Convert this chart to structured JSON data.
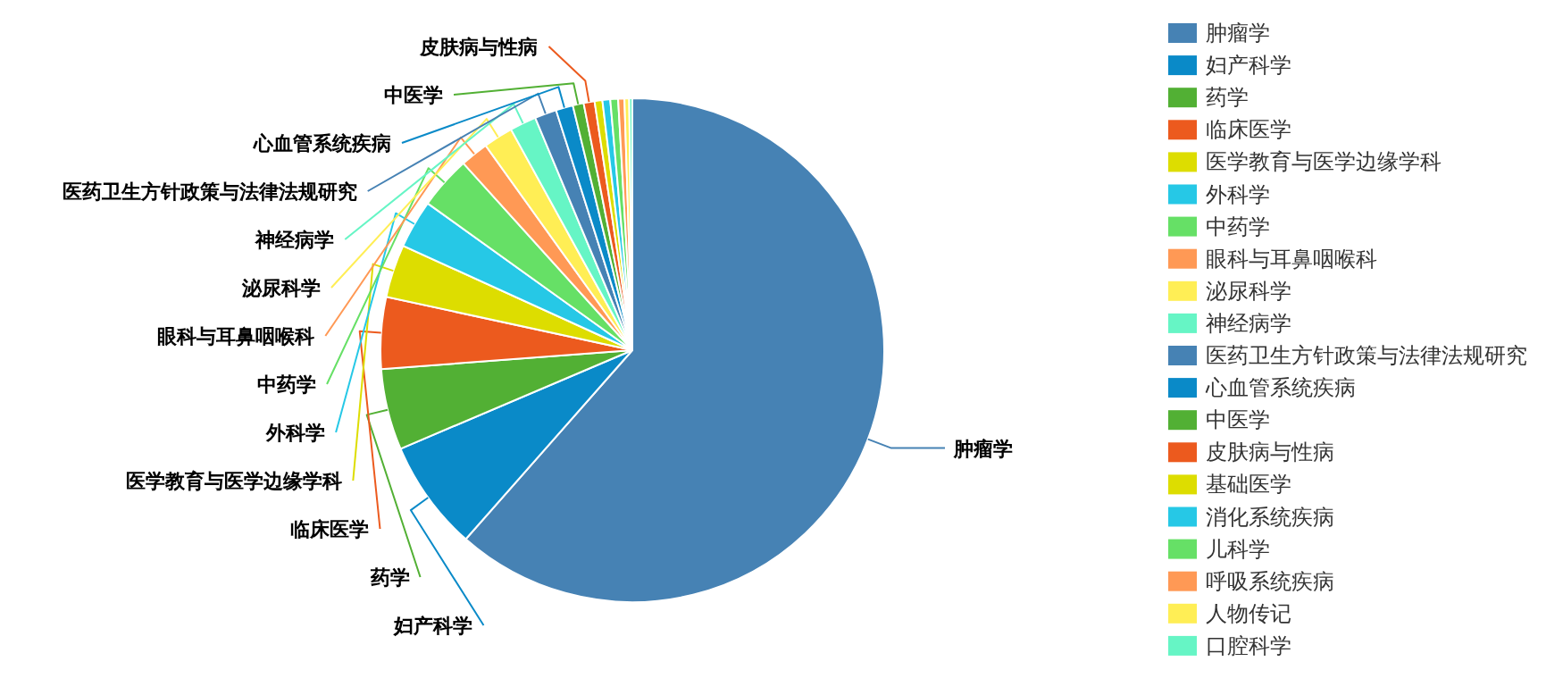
{
  "chart_data": {
    "type": "pie",
    "categories": [
      "肿瘤学",
      "妇产科学",
      "药学",
      "临床医学",
      "医学教育与医学边缘学科",
      "外科学",
      "中药学",
      "眼科与耳鼻咽喉科",
      "泌尿科学",
      "神经病学",
      "医药卫生方针政策与法律法规研究",
      "心血管系统疾病",
      "中医学",
      "皮肤病与性病",
      "基础医学",
      "消化系统疾病",
      "儿科学",
      "呼吸系统疾病",
      "人物传记",
      "口腔科学"
    ],
    "values": [
      61.5,
      7.1,
      5.2,
      4.6,
      3.4,
      3.1,
      3.4,
      1.8,
      1.9,
      1.7,
      1.4,
      1.1,
      0.7,
      0.7,
      0.5,
      0.5,
      0.5,
      0.4,
      0.3,
      0.2
    ],
    "colors": [
      "#4682b4",
      "#0a8ac8",
      "#52b034",
      "#ec5a1e",
      "#dddd00",
      "#26c8e6",
      "#66e066",
      "#ff9955",
      "#ffee55",
      "#66f5c5",
      "#4682b4",
      "#0a8ac8",
      "#52b034",
      "#ec5a1e",
      "#dddd00",
      "#26c8e6",
      "#66e066",
      "#ff9955",
      "#ffee55",
      "#66f5c5"
    ],
    "legend": "right"
  }
}
